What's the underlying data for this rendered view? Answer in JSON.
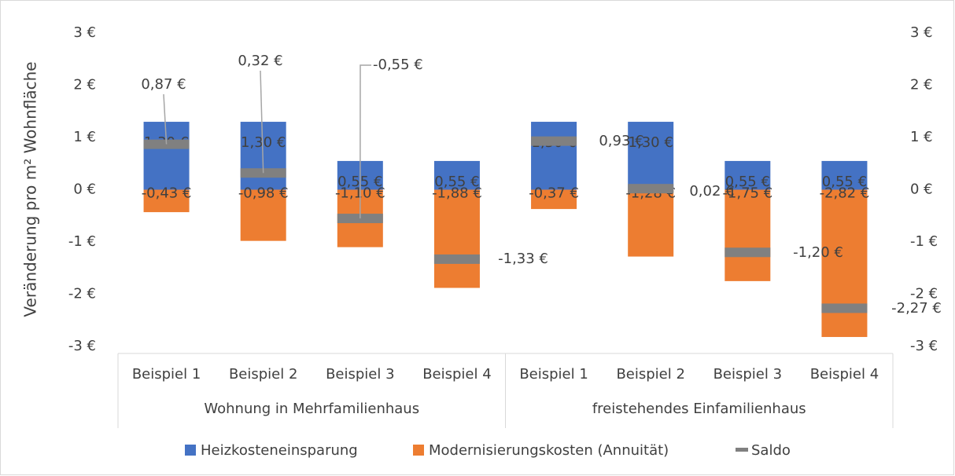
{
  "chart_data": {
    "type": "bar",
    "ylabel": "Veränderung pro m² Wohnfläche",
    "categories": [
      "Beispiel 1",
      "Beispiel 2",
      "Beispiel 3",
      "Beispiel 4",
      "Beispiel 1",
      "Beispiel 2",
      "Beispiel 3",
      "Beispiel 4"
    ],
    "groups": [
      "Wohnung in Mehrfamilienhaus",
      "freistehendes Einfamilienhaus"
    ],
    "series": [
      {
        "name": "Heizkosteneinsparung",
        "color": "#4472c4",
        "style": "bar",
        "values": [
          1.3,
          1.3,
          0.55,
          0.55,
          1.3,
          1.3,
          0.55,
          0.55
        ],
        "value_labels": [
          "1,30 €",
          "1,30 €",
          "0,55 €",
          "0,55 €",
          "1,30 €",
          "1,30 €",
          "0,55 €",
          "0,55 €"
        ]
      },
      {
        "name": "Modernisierungskosten (Annuität)",
        "color": "#ed7d31",
        "style": "bar",
        "values": [
          -0.43,
          -0.98,
          -1.1,
          -1.88,
          -0.37,
          -1.28,
          -1.75,
          -2.82
        ],
        "value_labels": [
          "-0,43 €",
          "-0,98 €",
          "-1,10 €",
          "-1,88 €",
          "-0,37 €",
          "-1,28 €",
          "-1,75 €",
          "-2,82 €"
        ]
      },
      {
        "name": "Saldo",
        "color": "#808080",
        "style": "marker",
        "values": [
          0.87,
          0.32,
          -0.55,
          -1.33,
          0.93,
          0.02,
          -1.2,
          -2.27
        ],
        "value_labels": [
          "0,87 €",
          "0,32 €",
          "-0,55 €",
          "-1,33 €",
          "0,93 €",
          "0,02 €",
          "-1,20 €",
          "-2,27 €"
        ]
      }
    ],
    "ylim": [
      -3,
      3
    ],
    "yticks": [
      {
        "value": -3,
        "label": "-3 €"
      },
      {
        "value": -2,
        "label": "-2 €"
      },
      {
        "value": -1,
        "label": "-1 €"
      },
      {
        "value": 0,
        "label": "0 €"
      },
      {
        "value": 1,
        "label": "1 €"
      },
      {
        "value": 2,
        "label": "2 €"
      },
      {
        "value": 3,
        "label": "3 €"
      }
    ],
    "y2lim": [
      -3,
      3
    ],
    "y2ticks": [
      {
        "value": -3,
        "label": "-3 €"
      },
      {
        "value": -2,
        "label": "-2 €"
      },
      {
        "value": -1,
        "label": "-1 €"
      },
      {
        "value": 0,
        "label": "0 €"
      },
      {
        "value": 1,
        "label": "1 €"
      },
      {
        "value": 2,
        "label": "2 €"
      },
      {
        "value": 3,
        "label": "3 €"
      }
    ],
    "legend": "bottom"
  }
}
